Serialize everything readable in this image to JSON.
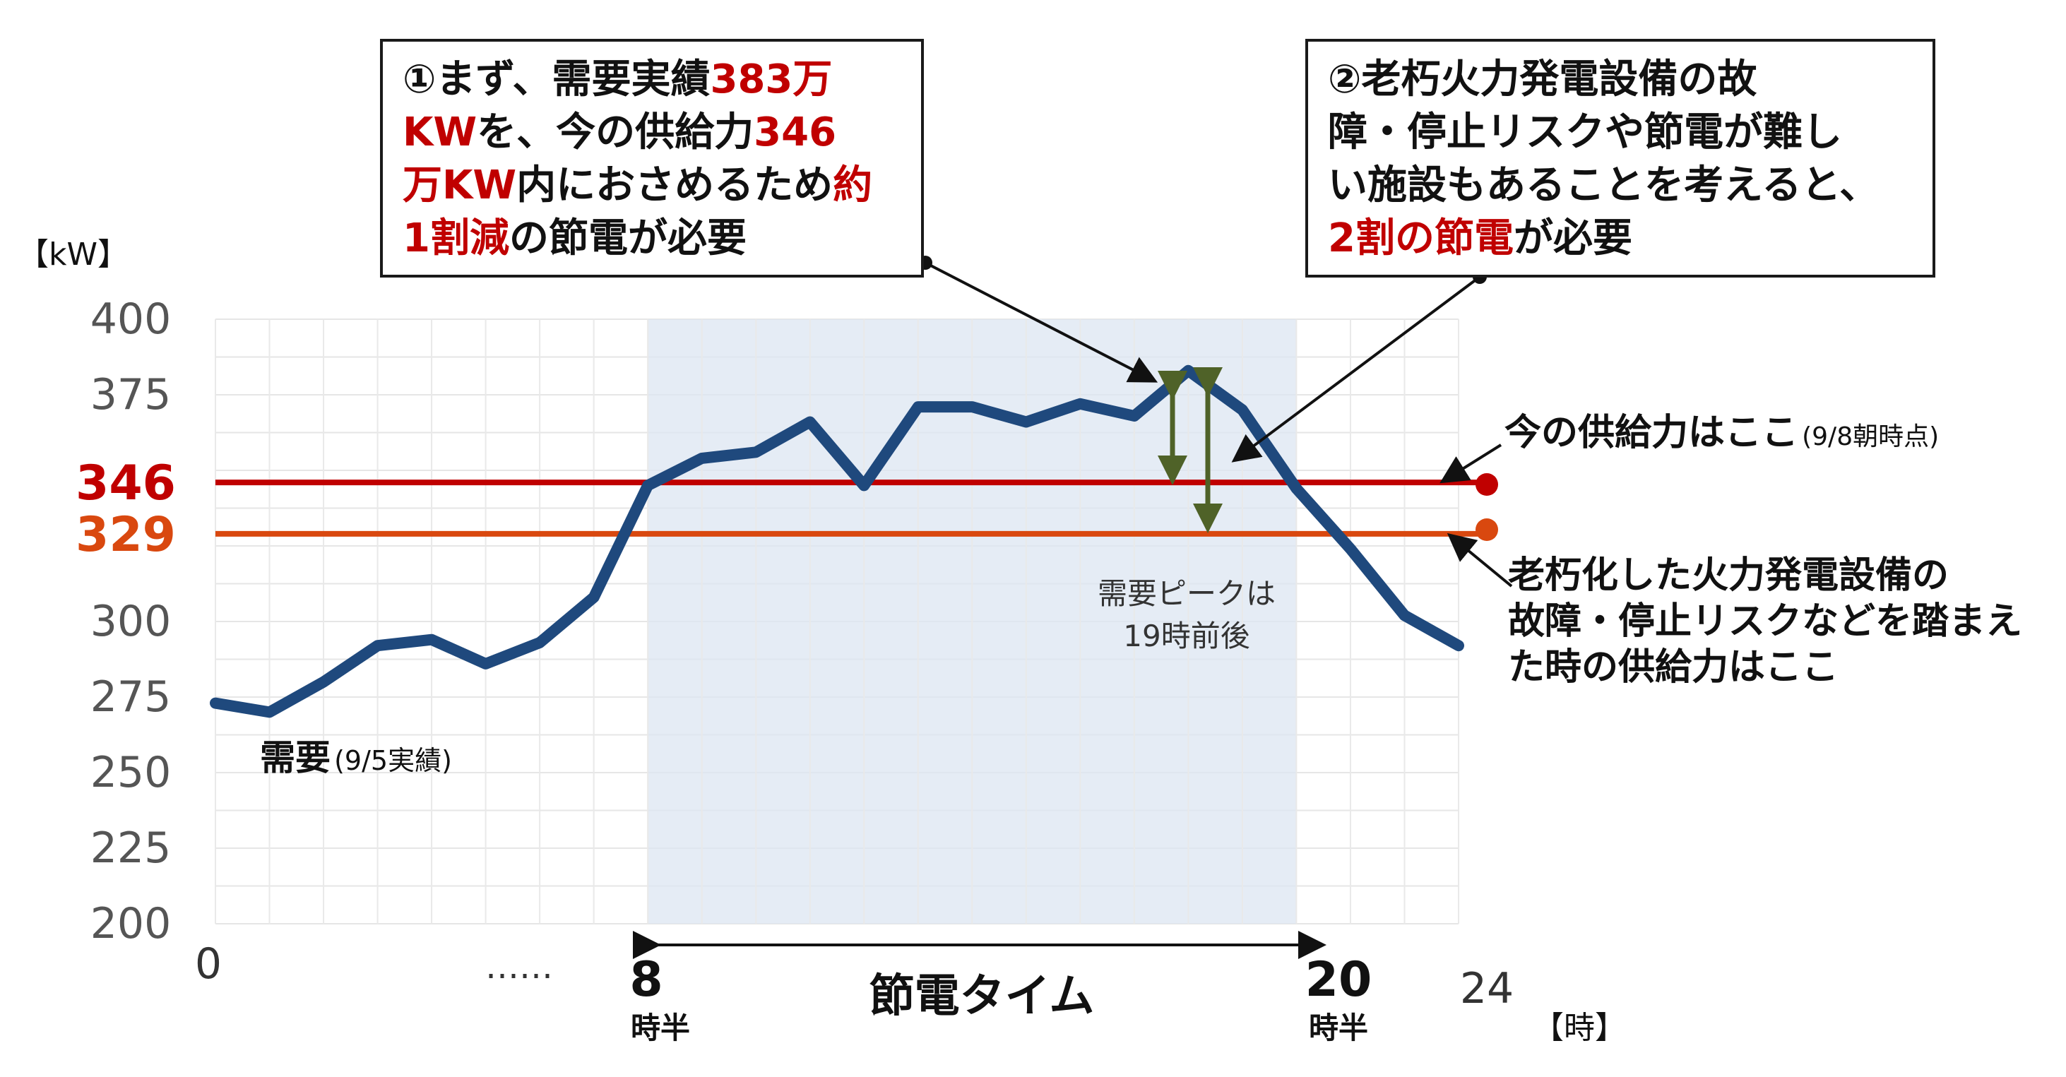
{
  "chart_data": {
    "type": "line",
    "unit_label": "【kW】",
    "x_unit_label": "【時】",
    "ylim": [
      200,
      400
    ],
    "yticks": [
      "200",
      "225",
      "250",
      "275",
      "300",
      "375",
      "400"
    ],
    "highlight_ticks": [
      {
        "label": "346",
        "value": 346,
        "color": "#c00000"
      },
      {
        "label": "329",
        "value": 329,
        "color": "#d9480f"
      }
    ],
    "x_labels": {
      "start": "0",
      "ellipsis": "……",
      "mid_start": "8",
      "mid_start_sub": "時半",
      "mid_end": "20",
      "mid_end_sub": "時半",
      "end": "24"
    },
    "x": [
      0,
      1,
      2,
      3,
      4,
      5,
      6,
      7,
      8,
      9,
      10,
      11,
      12,
      13,
      14,
      15,
      16,
      17,
      18,
      19,
      20,
      21,
      22,
      23
    ],
    "series": [
      {
        "name": "需要",
        "color": "#1f497d",
        "values": [
          273,
          270,
          280,
          292,
          294,
          286,
          293,
          308,
          345,
          354,
          356,
          366,
          345,
          371,
          371,
          366,
          372,
          368,
          383,
          370,
          344,
          324,
          302,
          292
        ]
      }
    ],
    "supply_lines": [
      {
        "value": 346,
        "color": "#c00000"
      },
      {
        "value": 329,
        "color": "#d9480f"
      }
    ],
    "shaded_range": [
      8,
      20
    ],
    "grid": true
  },
  "labels": {
    "demand_main": "需要",
    "demand_sub": "(9/5実績)",
    "peak_line1": "需要ピークは",
    "peak_line2": "19時前後",
    "savings_time": "節電タイム",
    "supply_now_main": "今の供給力はここ",
    "supply_now_sub": "(9/8朝時点)",
    "supply_old_line1": "老朽化した火力発電設備の",
    "supply_old_line2": "故障・停止リスクなどを踏まえ",
    "supply_old_line3": "た時の供給力はここ"
  },
  "callout1": {
    "l1a": "①まず、需要実績",
    "l1b": "383万",
    "l2a": "KW",
    "l2b": "を、今の供給力",
    "l2c": "346",
    "l3a": "万KW",
    "l3b": "内におさめるため",
    "l3c": "約",
    "l4a": "1割減",
    "l4b": "の節電が必要"
  },
  "callout2": {
    "l1": "②老朽火力発電設備の故",
    "l2": "障・停止リスクや節電が難し",
    "l3": "い施設もあることを考えると、",
    "l4a": "2割の節電",
    "l4b": "が必要"
  }
}
